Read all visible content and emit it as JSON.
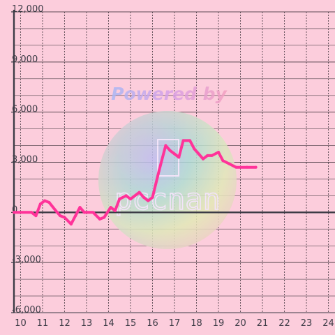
{
  "chart_data": {
    "type": "line",
    "title": "",
    "xlabel": "",
    "ylabel": "",
    "xlim": [
      9.7,
      24.3
    ],
    "ylim": [
      -6000,
      12000
    ],
    "x_ticks": [
      10,
      11,
      12,
      13,
      14,
      15,
      16,
      17,
      18,
      19,
      20,
      21,
      22,
      23,
      24
    ],
    "x_tick_labels": [
      "10",
      "11",
      "12",
      "13",
      "14",
      "15",
      "16",
      "17",
      "18",
      "19",
      "20",
      "21",
      "22",
      "23",
      "24"
    ],
    "y_ticks": [
      12000,
      9000,
      6000,
      3000,
      0,
      -3000,
      -6000
    ],
    "y_tick_labels": [
      "12,000",
      "9,000",
      "6,000",
      "3,000",
      "0",
      "-3,000",
      "-6,000"
    ],
    "grid": true,
    "legend": "none",
    "series": [
      {
        "color": "#ff3399",
        "points": [
          [
            9.7,
            0
          ],
          [
            10.5,
            0
          ],
          [
            10.7,
            -200
          ],
          [
            10.9,
            500
          ],
          [
            11.1,
            700
          ],
          [
            11.3,
            600
          ],
          [
            11.6,
            100
          ],
          [
            11.8,
            -200
          ],
          [
            12.0,
            -300
          ],
          [
            12.3,
            -700
          ],
          [
            12.5,
            -200
          ],
          [
            12.7,
            300
          ],
          [
            12.9,
            0
          ],
          [
            13.3,
            0
          ],
          [
            13.6,
            -400
          ],
          [
            13.8,
            -300
          ],
          [
            14.1,
            300
          ],
          [
            14.3,
            100
          ],
          [
            14.5,
            800
          ],
          [
            14.8,
            1000
          ],
          [
            15.0,
            800
          ],
          [
            15.4,
            1200
          ],
          [
            15.6,
            900
          ],
          [
            15.8,
            700
          ],
          [
            16.0,
            900
          ],
          [
            16.3,
            2500
          ],
          [
            16.6,
            4000
          ],
          [
            16.8,
            3700
          ],
          [
            17.0,
            3500
          ],
          [
            17.2,
            3300
          ],
          [
            17.4,
            4300
          ],
          [
            17.7,
            4300
          ],
          [
            17.9,
            3800
          ],
          [
            18.1,
            3500
          ],
          [
            18.3,
            3200
          ],
          [
            18.5,
            3400
          ],
          [
            18.7,
            3400
          ],
          [
            19.0,
            3600
          ],
          [
            19.2,
            3100
          ],
          [
            19.5,
            2900
          ],
          [
            19.8,
            2700
          ],
          [
            20.3,
            2700
          ],
          [
            20.7,
            2700
          ]
        ]
      }
    ],
    "colors": {
      "background": "#fccddc",
      "grid": "#4a3d45",
      "axis": "#3c3c46",
      "line": "#ff3399"
    }
  },
  "watermark": {
    "text": "Powered by",
    "brand": "pccnan"
  }
}
